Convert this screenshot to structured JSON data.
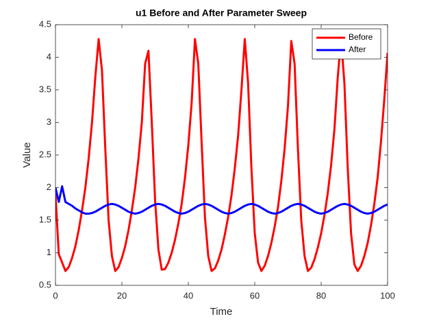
{
  "chart_data": {
    "type": "line",
    "title": "u1 Before and After Parameter Sweep",
    "x_label": "Time",
    "y_label": "Value",
    "x": [
      0,
      1,
      2,
      3,
      4,
      5,
      6,
      7,
      8,
      9,
      10,
      11,
      12,
      13,
      14,
      15,
      16,
      17,
      18,
      19,
      20,
      21,
      22,
      23,
      24,
      25,
      26,
      27,
      28,
      29,
      30,
      31,
      32,
      33,
      34,
      35,
      36,
      37,
      38,
      39,
      40,
      41,
      42,
      43,
      44,
      45,
      46,
      47,
      48,
      49,
      50,
      51,
      52,
      53,
      54,
      55,
      56,
      57,
      58,
      59,
      60,
      61,
      62,
      63,
      64,
      65,
      66,
      67,
      68,
      69,
      70,
      71,
      72,
      73,
      74,
      75,
      76,
      77,
      78,
      79,
      80,
      81,
      82,
      83,
      84,
      85,
      86,
      87,
      88,
      89,
      90,
      91,
      92,
      93,
      94,
      95,
      96,
      97,
      98,
      99,
      100
    ],
    "series": [
      {
        "name": "Before",
        "color": "#ff0000",
        "values": [
          1.9,
          0.98,
          0.85,
          0.72,
          0.78,
          0.92,
          1.1,
          1.35,
          1.65,
          2.0,
          2.45,
          3.0,
          3.7,
          4.28,
          3.8,
          2.6,
          1.5,
          0.95,
          0.72,
          0.78,
          0.92,
          1.1,
          1.35,
          1.65,
          2.0,
          2.45,
          3.0,
          3.9,
          4.1,
          3.0,
          1.8,
          1.05,
          0.74,
          0.75,
          0.85,
          1.0,
          1.2,
          1.45,
          1.75,
          2.15,
          2.65,
          3.3,
          4.28,
          3.9,
          2.7,
          1.55,
          0.95,
          0.72,
          0.76,
          0.88,
          1.05,
          1.28,
          1.55,
          1.88,
          2.3,
          2.8,
          3.5,
          4.28,
          3.6,
          2.3,
          1.3,
          0.85,
          0.72,
          0.8,
          0.95,
          1.15,
          1.4,
          1.7,
          2.1,
          2.6,
          3.25,
          4.25,
          3.9,
          2.6,
          1.5,
          0.95,
          0.72,
          0.77,
          0.9,
          1.08,
          1.3,
          1.58,
          1.92,
          2.35,
          2.9,
          3.7,
          4.28,
          3.6,
          2.3,
          1.3,
          0.82,
          0.72,
          0.8,
          0.95,
          1.15,
          1.42,
          1.75,
          2.15,
          2.7,
          3.35,
          4.07
        ]
      },
      {
        "name": "After",
        "color": "#0000ff",
        "values": [
          2.0,
          1.78,
          2.02,
          1.78,
          1.75,
          1.72,
          1.68,
          1.65,
          1.62,
          1.6,
          1.6,
          1.61,
          1.63,
          1.66,
          1.69,
          1.72,
          1.74,
          1.75,
          1.74,
          1.72,
          1.69,
          1.66,
          1.63,
          1.61,
          1.6,
          1.61,
          1.63,
          1.66,
          1.69,
          1.72,
          1.74,
          1.75,
          1.74,
          1.72,
          1.69,
          1.66,
          1.63,
          1.61,
          1.6,
          1.61,
          1.63,
          1.66,
          1.69,
          1.72,
          1.74,
          1.75,
          1.74,
          1.72,
          1.69,
          1.66,
          1.63,
          1.61,
          1.6,
          1.61,
          1.63,
          1.66,
          1.69,
          1.72,
          1.74,
          1.75,
          1.74,
          1.72,
          1.69,
          1.66,
          1.63,
          1.61,
          1.6,
          1.61,
          1.63,
          1.66,
          1.69,
          1.72,
          1.74,
          1.75,
          1.74,
          1.72,
          1.69,
          1.66,
          1.63,
          1.61,
          1.6,
          1.61,
          1.63,
          1.66,
          1.69,
          1.72,
          1.74,
          1.75,
          1.74,
          1.72,
          1.69,
          1.66,
          1.63,
          1.61,
          1.6,
          1.61,
          1.63,
          1.66,
          1.69,
          1.72,
          1.74
        ]
      }
    ],
    "xlim": [
      0,
      100
    ],
    "xticks": [
      0,
      20,
      40,
      60,
      80,
      100
    ],
    "ylim": [
      0.5,
      4.5
    ],
    "yticks": [
      0.5,
      1,
      1.5,
      2,
      2.5,
      3,
      3.5,
      4,
      4.5
    ],
    "grid": false,
    "legend": "top-right"
  }
}
